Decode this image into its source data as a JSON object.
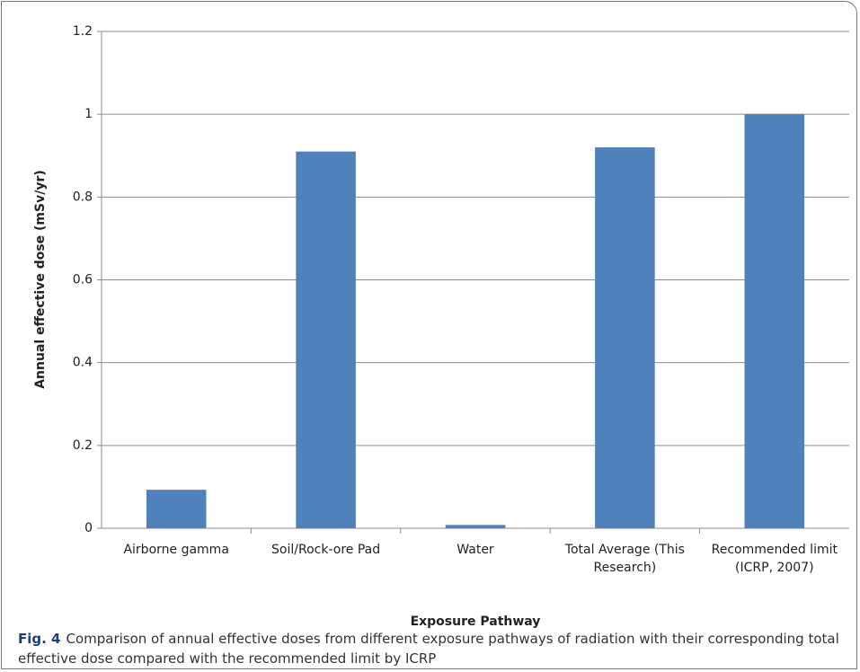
{
  "chart_data": {
    "type": "bar",
    "y_label": "Annual effective dose (mSv/yr)",
    "x_label": "Exposure Pathway",
    "categories": [
      "Airborne gamma",
      "Soil/Rock-ore Pad",
      "Water",
      "Total Average (This Research)",
      "Recommended limit (ICRP, 2007)"
    ],
    "values": [
      0.093,
      0.91,
      0.008,
      0.92,
      1
    ],
    "color": "#4f81bd",
    "ylim": [
      0,
      1.2
    ],
    "yticks": [
      0,
      0.2,
      0.4,
      0.6,
      0.8,
      1,
      1.2
    ],
    "grid": true
  },
  "caption": {
    "label": "Fig. 4",
    "text": "Comparison of annual effective doses from different exposure pathways of radiation with their corresponding total effective dose compared with the recommended limit by ICRP"
  }
}
